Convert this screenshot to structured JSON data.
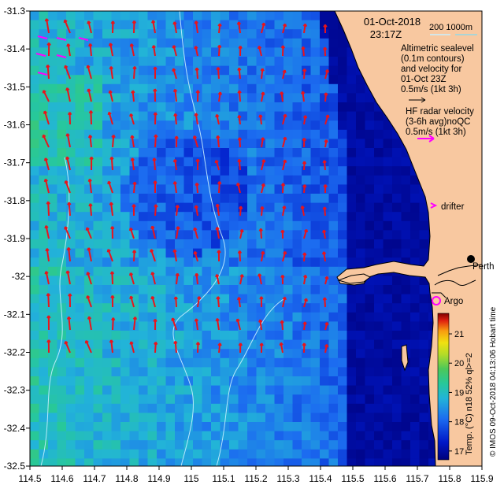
{
  "header": {
    "date": "01-Oct-2018",
    "time": "23:17Z",
    "depth_contours": "200   1000m"
  },
  "legend": {
    "altimetry": [
      "Altimetric sealevel",
      "(0.1m contours)",
      "and velocity for",
      "01-Oct 23Z"
    ],
    "altimetry_scale": "0.5m/s (1kt 3h)",
    "hf_radar": [
      "HF radar velocity",
      "(3-6h avg)noQC"
    ],
    "hf_radar_scale": "0.5m/s (1kt 3h)",
    "drifter": "drifter",
    "argo": "Argo"
  },
  "places": {
    "perth": "Perth",
    "credit": "© IMOS 09-Oct-2018 04:13:06 Hobart time"
  },
  "axes": {
    "x_ticks": [
      "114.5",
      "114.6",
      "114.7",
      "114.8",
      "114.9",
      "115",
      "115.1",
      "115.2",
      "115.3",
      "115.4",
      "115.5",
      "115.6",
      "115.7",
      "115.8",
      "115.9"
    ],
    "y_ticks": [
      "-31.3",
      "-31.4",
      "-31.5",
      "-31.6",
      "-31.7",
      "-31.8",
      "-31.9",
      "-32",
      "-32.1",
      "-32.2",
      "-32.3",
      "-32.4",
      "-32.5"
    ],
    "x_range": [
      114.5,
      115.9
    ],
    "y_range": [
      -32.5,
      -31.3
    ]
  },
  "colorbar": {
    "label": "Temp. (°C) n18 52% ql>=2",
    "ticks": [
      "17",
      "18",
      "19",
      "20",
      "21"
    ],
    "range": [
      16.7,
      21.7
    ]
  },
  "colors": {
    "land": "#f8c8a0",
    "arrow_altimetry": "#e8141c",
    "drifter": "#ff00ff",
    "contour": "#c8f0ff"
  }
}
